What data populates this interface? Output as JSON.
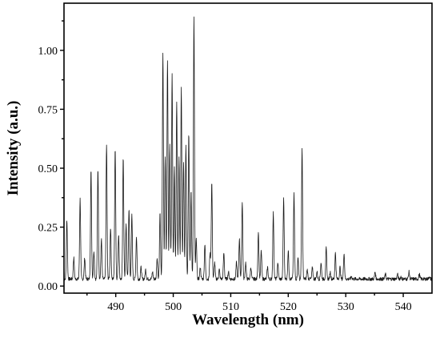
{
  "chart_data": {
    "type": "line",
    "title": "",
    "xlabel": "Wavelength (nm)",
    "ylabel": "Intensity (a.u.)",
    "xlim": [
      481,
      545
    ],
    "ylim": [
      -0.03,
      1.2
    ],
    "xticks": [
      490,
      500,
      510,
      520,
      530,
      540
    ],
    "xtick_labels": [
      "490",
      "500",
      "510",
      "520",
      "530",
      "540"
    ],
    "yticks": [
      0.0,
      0.25,
      0.5,
      0.75,
      1.0
    ],
    "ytick_labels": [
      "0.00",
      "0.25",
      "0.50",
      "0.75",
      "1.00"
    ],
    "grid": false,
    "baseline": 0.03,
    "series": [
      {
        "name": "",
        "color": "#1a1a1a",
        "peaks": [
          [
            481.5,
            0.28
          ],
          [
            482.7,
            0.12
          ],
          [
            483.8,
            0.37
          ],
          [
            484.6,
            0.12
          ],
          [
            485.7,
            0.49
          ],
          [
            486.2,
            0.15
          ],
          [
            486.9,
            0.5
          ],
          [
            487.5,
            0.2
          ],
          [
            488.4,
            0.6
          ],
          [
            489.1,
            0.25
          ],
          [
            489.9,
            0.59
          ],
          [
            490.5,
            0.22
          ],
          [
            491.3,
            0.55
          ],
          [
            491.8,
            0.26
          ],
          [
            492.3,
            0.33
          ],
          [
            492.8,
            0.3
          ],
          [
            493.6,
            0.21
          ],
          [
            494.4,
            0.08
          ],
          [
            495.2,
            0.07
          ],
          [
            496.4,
            0.06
          ],
          [
            497.2,
            0.12
          ],
          [
            497.7,
            0.31
          ],
          [
            498.2,
            0.99
          ],
          [
            498.6,
            0.55
          ],
          [
            499.0,
            0.96
          ],
          [
            499.4,
            0.6
          ],
          [
            499.8,
            0.9
          ],
          [
            500.2,
            0.5
          ],
          [
            500.6,
            0.78
          ],
          [
            501.0,
            0.55
          ],
          [
            501.4,
            0.84
          ],
          [
            501.8,
            0.52
          ],
          [
            502.2,
            0.6
          ],
          [
            502.7,
            0.65
          ],
          [
            503.1,
            0.4
          ],
          [
            503.6,
            1.14
          ],
          [
            504.0,
            0.2
          ],
          [
            504.7,
            0.08
          ],
          [
            505.5,
            0.18
          ],
          [
            506.4,
            0.14
          ],
          [
            506.7,
            0.44
          ],
          [
            507.2,
            0.1
          ],
          [
            508.0,
            0.07
          ],
          [
            508.8,
            0.14
          ],
          [
            509.6,
            0.06
          ],
          [
            511.0,
            0.1
          ],
          [
            511.5,
            0.2
          ],
          [
            512.0,
            0.36
          ],
          [
            512.6,
            0.1
          ],
          [
            513.5,
            0.08
          ],
          [
            514.8,
            0.23
          ],
          [
            515.3,
            0.15
          ],
          [
            516.4,
            0.08
          ],
          [
            517.4,
            0.31
          ],
          [
            518.2,
            0.1
          ],
          [
            519.2,
            0.37
          ],
          [
            520.0,
            0.15
          ],
          [
            521.0,
            0.39
          ],
          [
            521.7,
            0.12
          ],
          [
            522.4,
            0.58
          ],
          [
            523.3,
            0.07
          ],
          [
            524.2,
            0.08
          ],
          [
            525.0,
            0.06
          ],
          [
            525.7,
            0.1
          ],
          [
            526.6,
            0.16
          ],
          [
            527.3,
            0.06
          ],
          [
            528.2,
            0.14
          ],
          [
            529.0,
            0.08
          ],
          [
            529.7,
            0.14
          ],
          [
            531.0,
            0.04
          ],
          [
            533.0,
            0.03
          ],
          [
            535.1,
            0.06
          ],
          [
            536.9,
            0.05
          ],
          [
            539.0,
            0.05
          ],
          [
            539.6,
            0.04
          ],
          [
            541.0,
            0.06
          ],
          [
            542.8,
            0.05
          ],
          [
            544.5,
            0.04
          ]
        ]
      }
    ]
  }
}
